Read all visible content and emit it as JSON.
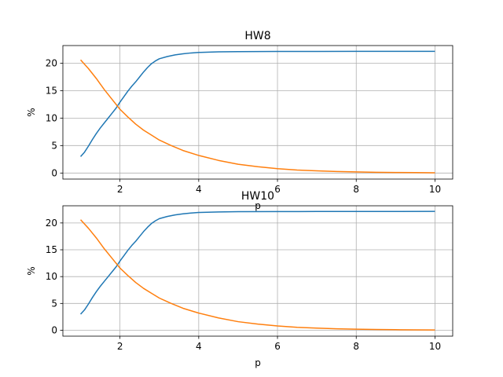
{
  "chart_data": [
    {
      "type": "line",
      "title": "HW8",
      "xlabel": "p",
      "ylabel": "%",
      "xlim": [
        0.55,
        10.45
      ],
      "ylim": [
        -1.1,
        23.2
      ],
      "xticks": [
        2,
        4,
        6,
        8,
        10
      ],
      "yticks": [
        0,
        5,
        10,
        15,
        20
      ],
      "grid": true,
      "series": [
        {
          "color": "#1f77b4",
          "x": [
            1.0,
            1.1,
            1.2,
            1.3,
            1.4,
            1.5,
            1.6,
            1.7,
            1.8,
            1.9,
            2.0,
            2.1,
            2.2,
            2.3,
            2.4,
            2.5,
            2.6,
            2.7,
            2.8,
            2.9,
            3.0,
            3.2,
            3.4,
            3.6,
            3.8,
            4.0,
            4.5,
            5.0,
            6.0,
            7.0,
            8.0,
            9.0,
            10.0
          ],
          "y": [
            3.0,
            3.8,
            4.9,
            6.1,
            7.2,
            8.2,
            9.1,
            10.0,
            10.9,
            11.8,
            12.9,
            13.9,
            14.9,
            15.8,
            16.6,
            17.5,
            18.4,
            19.2,
            19.9,
            20.4,
            20.8,
            21.2,
            21.5,
            21.7,
            21.85,
            21.95,
            22.05,
            22.1,
            22.12,
            22.13,
            22.14,
            22.14,
            22.15
          ]
        },
        {
          "color": "#ff7f0e",
          "x": [
            1.0,
            1.2,
            1.4,
            1.6,
            1.8,
            2.0,
            2.2,
            2.4,
            2.6,
            2.8,
            3.0,
            3.3,
            3.6,
            4.0,
            4.5,
            5.0,
            5.5,
            6.0,
            6.5,
            7.0,
            7.5,
            8.0,
            8.5,
            9.0,
            9.5,
            10.0
          ],
          "y": [
            20.6,
            19.0,
            17.2,
            15.2,
            13.4,
            11.6,
            10.2,
            8.9,
            7.8,
            6.9,
            6.0,
            5.0,
            4.1,
            3.2,
            2.3,
            1.6,
            1.15,
            0.8,
            0.55,
            0.4,
            0.28,
            0.2,
            0.14,
            0.1,
            0.07,
            0.05
          ]
        }
      ]
    },
    {
      "type": "line",
      "title": "HW10",
      "xlabel": "p",
      "ylabel": "%",
      "xlim": [
        0.55,
        10.45
      ],
      "ylim": [
        -1.1,
        23.2
      ],
      "xticks": [
        2,
        4,
        6,
        8,
        10
      ],
      "yticks": [
        0,
        5,
        10,
        15,
        20
      ],
      "grid": true,
      "series": [
        {
          "color": "#1f77b4",
          "x": [
            1.0,
            1.1,
            1.2,
            1.3,
            1.4,
            1.5,
            1.6,
            1.7,
            1.8,
            1.9,
            2.0,
            2.1,
            2.2,
            2.3,
            2.4,
            2.5,
            2.6,
            2.7,
            2.8,
            2.9,
            3.0,
            3.2,
            3.4,
            3.6,
            3.8,
            4.0,
            4.5,
            5.0,
            6.0,
            7.0,
            8.0,
            9.0,
            10.0
          ],
          "y": [
            3.0,
            3.8,
            4.9,
            6.1,
            7.2,
            8.2,
            9.1,
            10.0,
            10.9,
            11.8,
            12.9,
            13.9,
            14.9,
            15.8,
            16.6,
            17.5,
            18.4,
            19.2,
            19.9,
            20.4,
            20.8,
            21.2,
            21.5,
            21.7,
            21.85,
            21.95,
            22.05,
            22.1,
            22.12,
            22.13,
            22.14,
            22.14,
            22.15
          ]
        },
        {
          "color": "#ff7f0e",
          "x": [
            1.0,
            1.2,
            1.4,
            1.6,
            1.8,
            2.0,
            2.2,
            2.4,
            2.6,
            2.8,
            3.0,
            3.3,
            3.6,
            4.0,
            4.5,
            5.0,
            5.5,
            6.0,
            6.5,
            7.0,
            7.5,
            8.0,
            8.5,
            9.0,
            9.5,
            10.0
          ],
          "y": [
            20.6,
            19.0,
            17.2,
            15.2,
            13.4,
            11.6,
            10.2,
            8.9,
            7.8,
            6.9,
            6.0,
            5.0,
            4.1,
            3.2,
            2.3,
            1.6,
            1.15,
            0.8,
            0.55,
            0.4,
            0.28,
            0.2,
            0.14,
            0.1,
            0.07,
            0.05
          ]
        }
      ]
    }
  ]
}
